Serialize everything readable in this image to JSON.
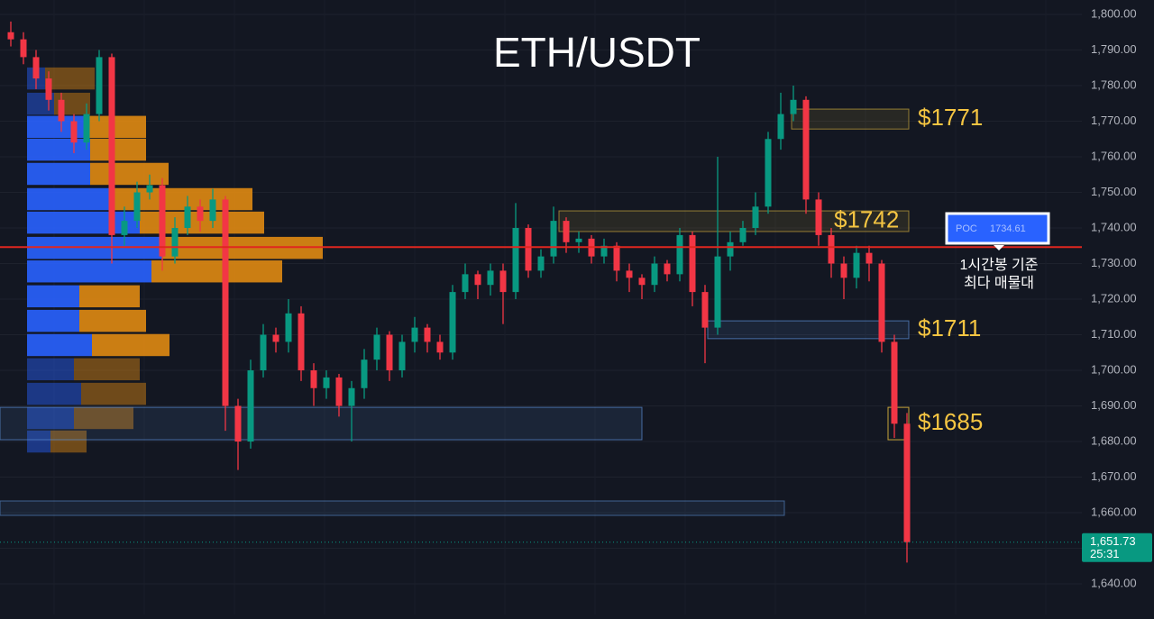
{
  "chart_data": {
    "type": "candlestick",
    "title": "ETH/USDT",
    "up_color": "#089981",
    "down_color": "#f23645",
    "open": [
      1795,
      1793,
      1788,
      1782,
      1776,
      1770,
      1764,
      1772,
      1788,
      1738,
      1742,
      1750,
      1752,
      1732,
      1740,
      1746,
      1742,
      1748,
      1690,
      1680,
      1700,
      1710,
      1708,
      1716,
      1700,
      1695,
      1698,
      1690,
      1695,
      1703,
      1710,
      1700,
      1708,
      1712,
      1708,
      1705,
      1722,
      1727,
      1724,
      1728,
      1722,
      1740,
      1728,
      1732,
      1742,
      1736,
      1737,
      1732,
      1735,
      1728,
      1726,
      1724,
      1730,
      1727,
      1738,
      1722,
      1712,
      1732,
      1736,
      1740,
      1746,
      1765,
      1772,
      1776,
      1748,
      1738,
      1730,
      1726,
      1733,
      1730,
      1708,
      1685
    ],
    "high": [
      1798,
      1795,
      1790,
      1784,
      1778,
      1772,
      1775,
      1790,
      1789,
      1746,
      1753,
      1755,
      1754,
      1743,
      1749,
      1748,
      1751,
      1749,
      1692,
      1703,
      1713,
      1712,
      1720,
      1718,
      1702,
      1700,
      1699,
      1697,
      1706,
      1712,
      1711,
      1710,
      1715,
      1713,
      1710,
      1724,
      1730,
      1728,
      1730,
      1730,
      1747,
      1741,
      1734,
      1746,
      1743,
      1739,
      1738,
      1737,
      1736,
      1730,
      1727,
      1732,
      1731,
      1740,
      1739,
      1724,
      1760,
      1739,
      1742,
      1750,
      1767,
      1778,
      1780,
      1777,
      1750,
      1740,
      1732,
      1735,
      1735,
      1731,
      1710,
      1688
    ],
    "low": [
      1791,
      1786,
      1779,
      1773,
      1767,
      1761,
      1762,
      1770,
      1730,
      1735,
      1740,
      1748,
      1728,
      1730,
      1738,
      1739,
      1740,
      1683,
      1672,
      1678,
      1698,
      1705,
      1705,
      1697,
      1690,
      1692,
      1687,
      1680,
      1692,
      1700,
      1697,
      1698,
      1705,
      1705,
      1703,
      1703,
      1720,
      1720,
      1721,
      1713,
      1720,
      1726,
      1726,
      1730,
      1733,
      1733,
      1730,
      1730,
      1725,
      1722,
      1720,
      1722,
      1725,
      1725,
      1718,
      1702,
      1710,
      1728,
      1735,
      1738,
      1744,
      1762,
      1770,
      1744,
      1735,
      1726,
      1720,
      1723,
      1725,
      1705,
      1681,
      1646
    ],
    "close": [
      1793,
      1788,
      1782,
      1776,
      1770,
      1764,
      1772,
      1788,
      1738,
      1742,
      1750,
      1752,
      1732,
      1740,
      1746,
      1742,
      1748,
      1690,
      1680,
      1700,
      1710,
      1708,
      1716,
      1700,
      1695,
      1698,
      1690,
      1695,
      1703,
      1710,
      1700,
      1708,
      1712,
      1708,
      1705,
      1722,
      1727,
      1724,
      1728,
      1722,
      1740,
      1728,
      1732,
      1742,
      1736,
      1737,
      1732,
      1735,
      1728,
      1726,
      1724,
      1730,
      1727,
      1738,
      1722,
      1712,
      1732,
      1736,
      1740,
      1746,
      1765,
      1772,
      1776,
      1748,
      1738,
      1730,
      1726,
      1733,
      1730,
      1708,
      1685,
      1651.73
    ],
    "ylim": [
      1631.4,
      1804.05
    ],
    "yticks": [
      {
        "value": 1640,
        "label": "1,640.00"
      },
      {
        "value": 1650,
        "label": "1,650.00"
      },
      {
        "value": 1660,
        "label": "1,660.00"
      },
      {
        "value": 1670,
        "label": "1,670.00"
      },
      {
        "value": 1680,
        "label": "1,680.00"
      },
      {
        "value": 1690,
        "label": "1,690.00"
      },
      {
        "value": 1700,
        "label": "1,700.00"
      },
      {
        "value": 1710,
        "label": "1,710.00"
      },
      {
        "value": 1720,
        "label": "1,720.00"
      },
      {
        "value": 1730,
        "label": "1,730.00"
      },
      {
        "value": 1740,
        "label": "1,740.00"
      },
      {
        "value": 1750,
        "label": "1,750.00"
      },
      {
        "value": 1760,
        "label": "1,760.00"
      },
      {
        "value": 1770,
        "label": "1,770.00"
      },
      {
        "value": 1780,
        "label": "1,780.00"
      },
      {
        "value": 1790,
        "label": "1,790.00"
      },
      {
        "value": 1800,
        "label": "1,800.00"
      }
    ],
    "profile": {
      "levels": [
        1782,
        1774.9,
        1768.4,
        1762,
        1755.2,
        1748.1,
        1741.5,
        1734.4,
        1727.8,
        1720.8,
        1713.9,
        1707.1,
        1700.3,
        1693.4,
        1686.6,
        1680
      ],
      "buy": [
        20,
        30,
        65,
        70,
        70,
        95,
        125,
        150,
        138,
        58,
        58,
        72,
        52,
        60,
        52,
        26
      ],
      "sell": [
        55,
        40,
        67,
        62,
        87,
        155,
        138,
        178,
        145,
        67,
        74,
        86,
        73,
        72,
        66,
        40
      ],
      "buy_color": "#2962ff",
      "sell_color": "#e08a12"
    },
    "zones": [
      {
        "label": "$1771",
        "low": 1767.8,
        "high": 1773.4
      },
      {
        "label": "$1742",
        "low": 1739,
        "high": 1744.8
      },
      {
        "label": "$1711",
        "low": 1708.9,
        "high": 1713.9
      },
      {
        "label": "$1685",
        "low": 1680.5,
        "high": 1689.6
      }
    ],
    "poc": {
      "label": "POC",
      "value": 1734.61,
      "note": [
        "1시간봉 기준",
        "최다 매물대"
      ]
    },
    "last_price": {
      "value": 1651.73,
      "label": "1,651.73",
      "countdown": "25:31"
    }
  }
}
